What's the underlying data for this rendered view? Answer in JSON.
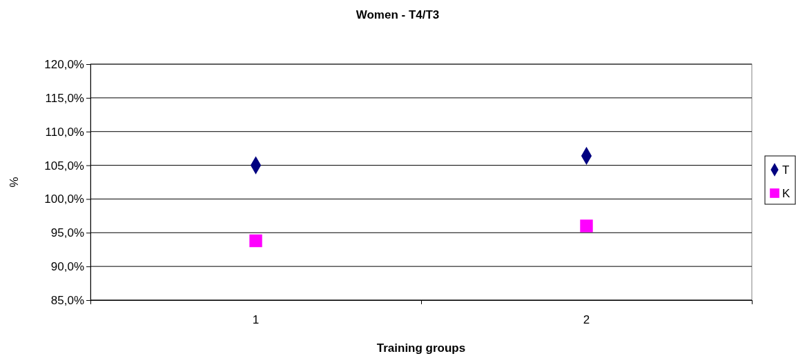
{
  "chart_data": {
    "type": "scatter",
    "title": "Women - T4/T3",
    "xlabel": "Training groups",
    "ylabel": "%",
    "categories": [
      "1",
      "2"
    ],
    "series": [
      {
        "name": "T",
        "color": "#000080",
        "values": [
          105.0,
          106.4
        ],
        "marker": "diamond"
      },
      {
        "name": "K",
        "color": "#ff00ff",
        "values": [
          93.8,
          96.0
        ],
        "marker": "square"
      }
    ],
    "ylim": [
      85,
      120
    ],
    "yticks": [
      {
        "value": 85,
        "label": "85,0%"
      },
      {
        "value": 90,
        "label": "90,0%"
      },
      {
        "value": 95,
        "label": "95,0%"
      },
      {
        "value": 100,
        "label": "100,0%"
      },
      {
        "value": 105,
        "label": "105,0%"
      },
      {
        "value": 110,
        "label": "110,0%"
      },
      {
        "value": 115,
        "label": "115,0%"
      },
      {
        "value": 120,
        "label": "120,0%"
      }
    ],
    "grid": "y",
    "legend": "right"
  }
}
